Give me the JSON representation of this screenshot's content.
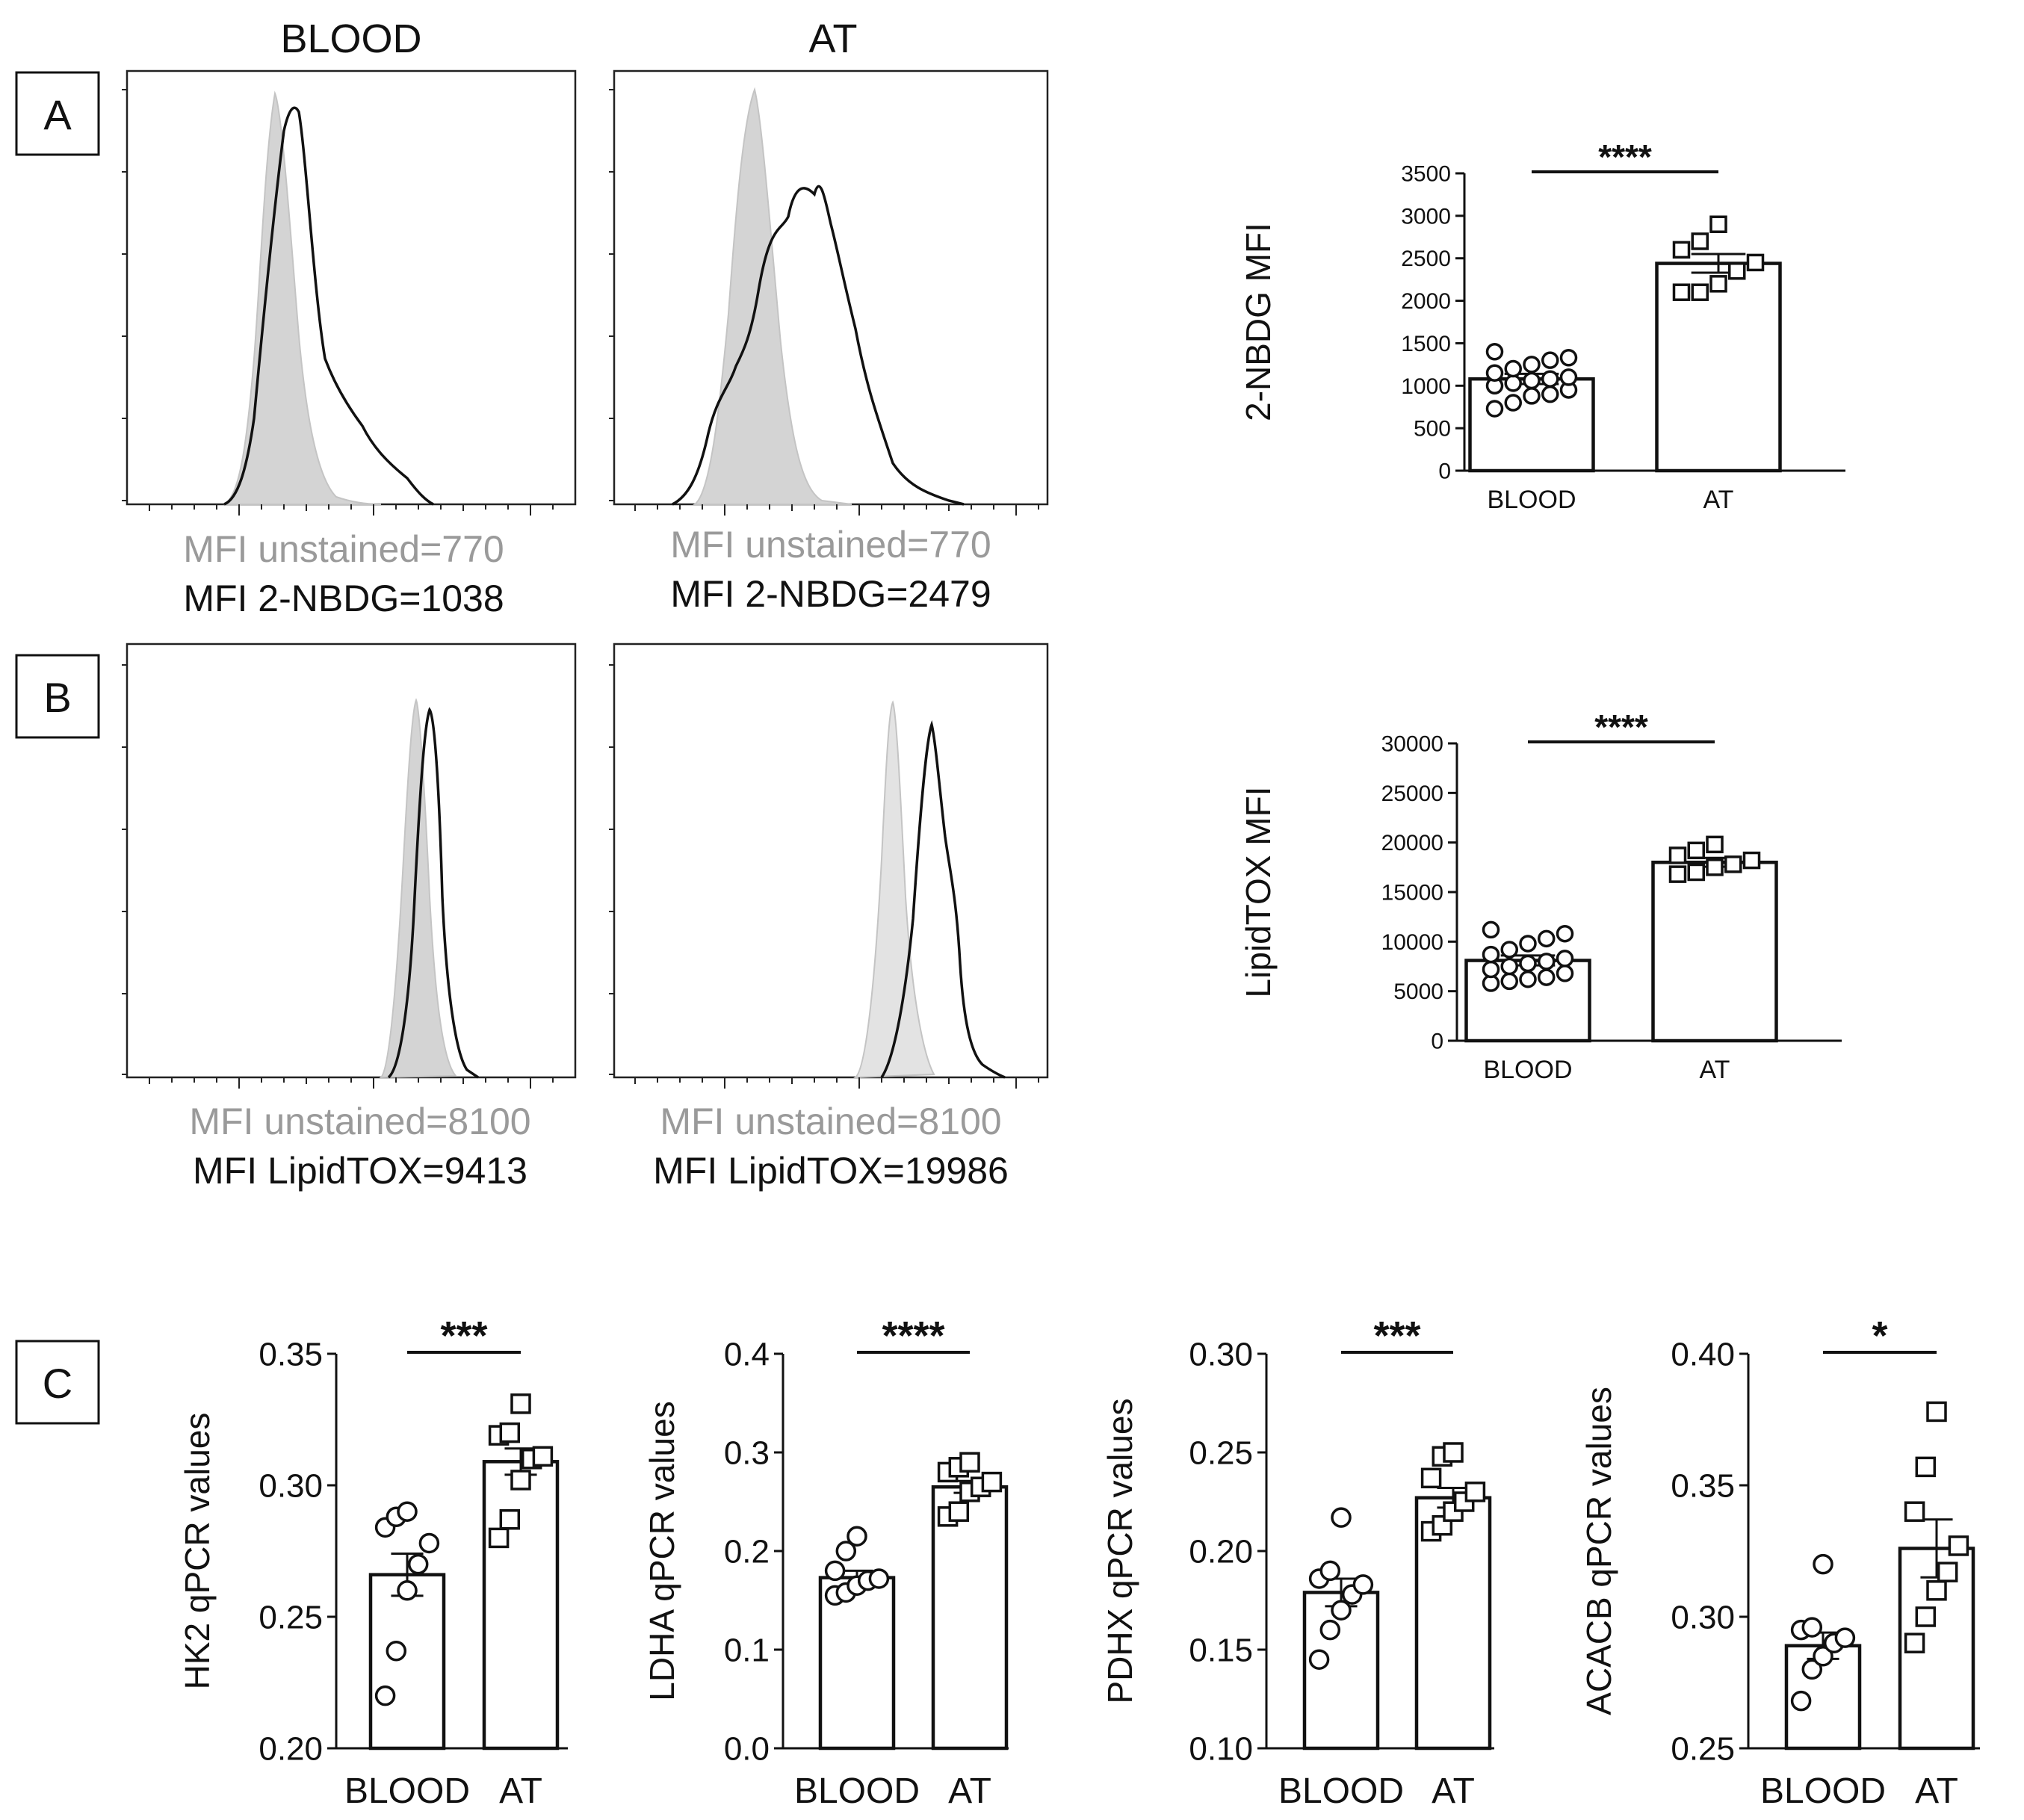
{
  "panels": {
    "A": {
      "label": "A"
    },
    "B": {
      "label": "B"
    },
    "C": {
      "label": "C"
    }
  },
  "column_headers": {
    "blood": "BLOOD",
    "at": "AT"
  },
  "colors": {
    "unstained_fill": "#d4d4d4",
    "unstained_text": "#9a9a9a",
    "line": "#111111"
  },
  "histograms": [
    {
      "id": "hist-a-blood",
      "panel": "A",
      "column": "BLOOD",
      "unstained_label": "MFI unstained=770",
      "stained_label": "MFI 2-NBDG=1038"
    },
    {
      "id": "hist-a-at",
      "panel": "A",
      "column": "AT",
      "unstained_label": "MFI unstained=770",
      "stained_label": "MFI 2-NBDG=2479"
    },
    {
      "id": "hist-b-blood",
      "panel": "B",
      "column": "BLOOD",
      "unstained_label": "MFI unstained=8100",
      "stained_label": "MFI LipidTOX=9413"
    },
    {
      "id": "hist-b-at",
      "panel": "B",
      "column": "AT",
      "unstained_label": "MFI unstained=8100",
      "stained_label": "MFI LipidTOX=19986"
    }
  ],
  "chart_data": [
    {
      "id": "nbdg",
      "type": "bar",
      "title": "",
      "xlabel": "",
      "ylabel": "2-NBDG MFI",
      "categories": [
        "BLOOD",
        "AT"
      ],
      "values": [
        1080,
        2440
      ],
      "errors": [
        60,
        110
      ],
      "ylim": [
        0,
        3500
      ],
      "yticks": [
        0,
        500,
        1000,
        1500,
        2000,
        2500,
        3000,
        3500
      ],
      "ytick_labels": [
        "0",
        "500",
        "1000",
        "1500",
        "2000",
        "2500",
        "3000",
        "3500"
      ],
      "points": [
        [
          730,
          800,
          880,
          900,
          950,
          1000,
          1030,
          1060,
          1080,
          1100,
          1150,
          1200,
          1250,
          1300,
          1330,
          1400
        ],
        [
          2100,
          2100,
          2200,
          2350,
          2450,
          2600,
          2700,
          2900
        ]
      ],
      "markers": [
        "circle",
        "square"
      ],
      "significance": "****"
    },
    {
      "id": "lipidtox",
      "type": "bar",
      "title": "",
      "xlabel": "",
      "ylabel": "LipidTOX MFI",
      "categories": [
        "BLOOD",
        "AT"
      ],
      "values": [
        8100,
        18000
      ],
      "errors": [
        500,
        450
      ],
      "ylim": [
        0,
        30000
      ],
      "yticks": [
        0,
        5000,
        10000,
        15000,
        20000,
        25000,
        30000
      ],
      "ytick_labels": [
        "0",
        "5000",
        "10000",
        "15000",
        "20000",
        "25000",
        "30000"
      ],
      "points": [
        [
          5800,
          6000,
          6200,
          6400,
          6800,
          7200,
          7500,
          7800,
          8000,
          8300,
          8700,
          9200,
          9800,
          10300,
          10800,
          11200
        ],
        [
          16800,
          17000,
          17500,
          17800,
          18200,
          18700,
          19200,
          19800
        ]
      ],
      "markers": [
        "circle",
        "square"
      ],
      "significance": "****"
    },
    {
      "id": "hk2",
      "type": "bar",
      "title": "",
      "xlabel": "",
      "ylabel": "HK2 qPCR values",
      "categories": [
        "BLOOD",
        "AT"
      ],
      "values": [
        0.266,
        0.309
      ],
      "errors": [
        0.008,
        0.005
      ],
      "ylim": [
        0.2,
        0.35
      ],
      "yticks": [
        0.2,
        0.25,
        0.3,
        0.35
      ],
      "ytick_labels": [
        "0.20",
        "0.25",
        "0.30",
        "0.35"
      ],
      "points": [
        [
          0.22,
          0.237,
          0.26,
          0.27,
          0.278,
          0.284,
          0.288,
          0.29
        ],
        [
          0.28,
          0.287,
          0.302,
          0.31,
          0.311,
          0.319,
          0.32,
          0.331
        ]
      ],
      "markers": [
        "circle",
        "square"
      ],
      "significance": "***"
    },
    {
      "id": "ldha",
      "type": "bar",
      "title": "",
      "xlabel": "",
      "ylabel": "LDHA qPCR values",
      "categories": [
        "BLOOD",
        "AT"
      ],
      "values": [
        0.173,
        0.265
      ],
      "errors": [
        0.007,
        0.006
      ],
      "ylim": [
        0,
        0.4
      ],
      "yticks": [
        0,
        0.1,
        0.2,
        0.3,
        0.4
      ],
      "ytick_labels": [
        "0.0",
        "0.1",
        "0.2",
        "0.3",
        "0.4"
      ],
      "points": [
        [
          0.155,
          0.158,
          0.165,
          0.17,
          0.172,
          0.18,
          0.2,
          0.215
        ],
        [
          0.235,
          0.24,
          0.26,
          0.265,
          0.27,
          0.28,
          0.285,
          0.29
        ]
      ],
      "markers": [
        "circle",
        "square"
      ],
      "significance": "****"
    },
    {
      "id": "pdhx",
      "type": "bar",
      "title": "",
      "xlabel": "",
      "ylabel": "PDHX qPCR values",
      "categories": [
        "BLOOD",
        "AT"
      ],
      "values": [
        0.179,
        0.227
      ],
      "errors": [
        0.007,
        0.005
      ],
      "ylim": [
        0.1,
        0.3
      ],
      "yticks": [
        0.1,
        0.15,
        0.2,
        0.25,
        0.3
      ],
      "ytick_labels": [
        "0.10",
        "0.15",
        "0.20",
        "0.25",
        "0.30"
      ],
      "points": [
        [
          0.145,
          0.16,
          0.17,
          0.178,
          0.183,
          0.186,
          0.19,
          0.217
        ],
        [
          0.21,
          0.213,
          0.22,
          0.225,
          0.23,
          0.237,
          0.248,
          0.25
        ]
      ],
      "markers": [
        "circle",
        "square"
      ],
      "significance": "***"
    },
    {
      "id": "acacb",
      "type": "bar",
      "title": "",
      "xlabel": "",
      "ylabel": "ACACB qPCR values",
      "categories": [
        "BLOOD",
        "AT"
      ],
      "values": [
        0.289,
        0.326
      ],
      "errors": [
        0.005,
        0.011
      ],
      "ylim": [
        0.25,
        0.4
      ],
      "yticks": [
        0.25,
        0.3,
        0.35,
        0.4
      ],
      "ytick_labels": [
        "0.25",
        "0.30",
        "0.35",
        "0.40"
      ],
      "points": [
        [
          0.268,
          0.28,
          0.285,
          0.29,
          0.292,
          0.295,
          0.296,
          0.32
        ],
        [
          0.29,
          0.3,
          0.31,
          0.317,
          0.327,
          0.34,
          0.357,
          0.378
        ]
      ],
      "markers": [
        "circle",
        "square"
      ],
      "significance": "*"
    }
  ]
}
